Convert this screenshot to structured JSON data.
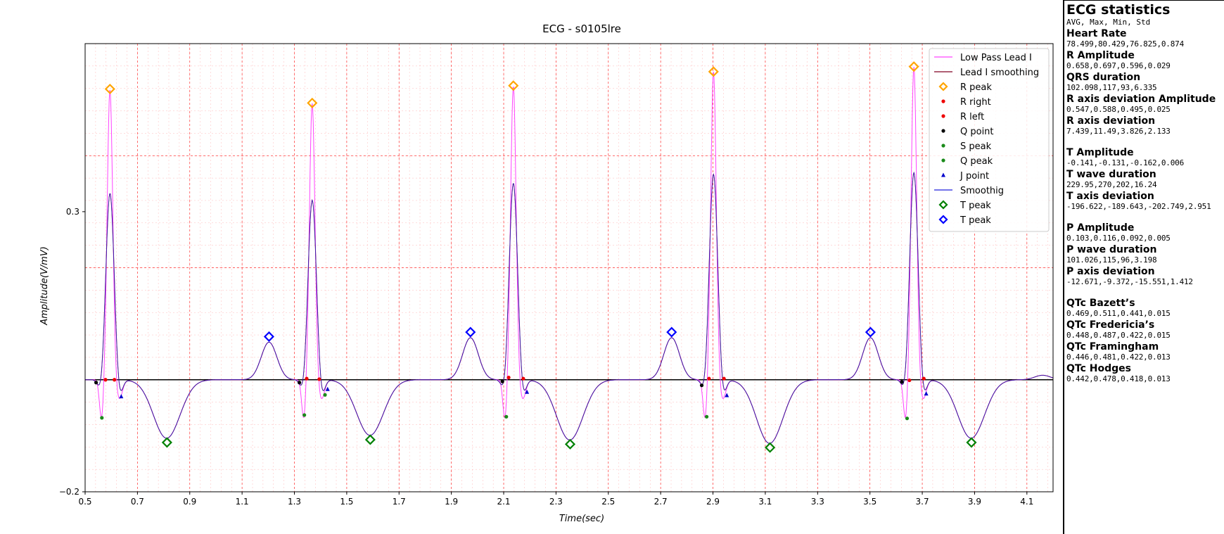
{
  "chart_data": {
    "type": "line",
    "title": "ECG - s0105lre",
    "xlabel": "Time(sec)",
    "ylabel": "Amplitude(V/mV)",
    "xlim": [
      0.5,
      4.2
    ],
    "ylim": [
      -0.2,
      0.6
    ],
    "x_ticks": [
      0.5,
      0.7,
      0.9,
      1.1,
      1.3,
      1.5,
      1.7,
      1.9,
      2.1,
      2.3,
      2.5,
      2.7,
      2.9,
      3.1,
      3.3,
      3.5,
      3.7,
      3.9,
      4.1
    ],
    "x_tick_labels": [
      "0.5",
      "0.7",
      "0.9",
      "1.1",
      "1.3",
      "1.5",
      "1.7",
      "1.9",
      "2.1",
      "2.3",
      "2.5",
      "2.7",
      "2.9",
      "3.1",
      "3.3",
      "3.5",
      "3.7",
      "3.9",
      "4.1"
    ],
    "y_ticks": [
      0.3,
      -0.2
    ],
    "y_tick_labels": [
      "0.3",
      "−0.2"
    ],
    "baseline": 0.0,
    "grid": true,
    "legend_position": "top-right",
    "series_colors": {
      "low_pass": "#ff44ff",
      "smoothing": "#800020",
      "smoothig": "#2222dd",
      "r_peak": "#ffa500",
      "r_right": "#ee0000",
      "r_left": "#ee0000",
      "q_point": "#000000",
      "s_peak": "#1a8a1a",
      "q_peak": "#1a8a1a",
      "j_point": "#0000cc",
      "t_peak_green": "#008000",
      "t_peak_blue": "#0000ff",
      "baseline": "#000000"
    },
    "beats": [
      {
        "r_time": 0.595,
        "r_peak": 0.519,
        "r_smooth": 0.334
      },
      {
        "r_time": 1.368,
        "r_peak": 0.494,
        "r_smooth": 0.322
      },
      {
        "r_time": 2.137,
        "r_peak": 0.525,
        "r_smooth": 0.352
      },
      {
        "r_time": 2.902,
        "r_peak": 0.55,
        "r_smooth": 0.368
      },
      {
        "r_time": 3.668,
        "r_peak": 0.559,
        "r_smooth": 0.371
      }
    ],
    "markers": {
      "r_peak": {
        "x": [
          0.595,
          1.368,
          2.137,
          2.902,
          3.668
        ],
        "y": [
          0.519,
          0.494,
          0.525,
          0.55,
          0.559
        ]
      },
      "r_right": {
        "x": [
          0.578,
          1.347,
          2.119,
          2.885,
          3.651
        ],
        "y": [
          0.0,
          0.002,
          0.004,
          0.002,
          -0.001
        ]
      },
      "r_left": {
        "x": [
          0.612,
          1.395,
          2.175,
          2.942,
          3.706
        ],
        "y": [
          0.0,
          0.001,
          0.002,
          0.002,
          0.002
        ]
      },
      "q_point": {
        "x": [
          0.542,
          1.319,
          2.095,
          2.857,
          3.622
        ],
        "y": [
          -0.005,
          -0.005,
          -0.003,
          -0.01,
          -0.004
        ]
      },
      "s_peak": {
        "x": [
          0.564,
          1.338,
          2.11,
          2.876,
          3.642
        ],
        "y": [
          -0.068,
          -0.063,
          -0.066,
          -0.066,
          -0.069
        ]
      },
      "q_peak": {
        "x": [
          1.417
        ],
        "y": [
          -0.027
        ]
      },
      "j_point": {
        "x": [
          0.638,
          1.427,
          2.189,
          2.953,
          3.715
        ],
        "y": [
          -0.03,
          -0.017,
          -0.022,
          -0.028,
          -0.025
        ]
      },
      "t_peak_green": {
        "x": [
          0.813,
          1.59,
          2.354,
          3.118,
          3.888
        ],
        "y": [
          -0.112,
          -0.107,
          -0.115,
          -0.121,
          -0.112
        ]
      },
      "t_peak_blue": {
        "x": [
          1.203,
          1.973,
          2.742,
          3.502
        ],
        "y": [
          0.077,
          0.085,
          0.085,
          0.085
        ]
      }
    },
    "legend": [
      {
        "label": "Low Pass Lead I",
        "kind": "line",
        "color": "#ff44ff"
      },
      {
        "label": "Lead I smoothing",
        "kind": "line",
        "color": "#800020"
      },
      {
        "label": "R peak",
        "kind": "diamond",
        "color": "#ffa500"
      },
      {
        "label": "R right",
        "kind": "dot",
        "color": "#ee0000"
      },
      {
        "label": "R left",
        "kind": "dot",
        "color": "#ee0000"
      },
      {
        "label": "Q point",
        "kind": "dot",
        "color": "#000000"
      },
      {
        "label": "S peak",
        "kind": "dot",
        "color": "#1a8a1a"
      },
      {
        "label": "Q peak",
        "kind": "dot",
        "color": "#1a8a1a"
      },
      {
        "label": "J point",
        "kind": "triangle",
        "color": "#0000cc"
      },
      {
        "label": "Smoothig",
        "kind": "line",
        "color": "#2222dd"
      },
      {
        "label": "T peak",
        "kind": "diamond",
        "color": "#008000"
      },
      {
        "label": "T peak",
        "kind": "diamond",
        "color": "#0000ff"
      }
    ]
  },
  "stats": {
    "title": "ECG statistics",
    "subtitle": "AVG, Max, Min, Std",
    "groups": [
      {
        "label": "Heart Rate",
        "value": "78.499,80.429,76.825,0.874",
        "gap": false
      },
      {
        "label": "R Amplitude",
        "value": "0.658,0.697,0.596,0.029",
        "gap": false
      },
      {
        "label": "QRS duration",
        "value": "102.098,117,93,6.335",
        "gap": false
      },
      {
        "label": "R axis deviation Amplitude",
        "value": "0.547,0.588,0.495,0.025",
        "gap": false
      },
      {
        "label": "R axis deviation",
        "value": "7.439,11.49,3.826,2.133",
        "gap": false
      },
      {
        "label": "T Amplitude",
        "value": "-0.141,-0.131,-0.162,0.006",
        "gap": true
      },
      {
        "label": "T wave duration",
        "value": "229.95,270,202,16.24",
        "gap": false
      },
      {
        "label": "T axis deviation",
        "value": "-196.622,-189.643,-202.749,2.951",
        "gap": false
      },
      {
        "label": "P Amplitude",
        "value": "0.103,0.116,0.092,0.005",
        "gap": true
      },
      {
        "label": "P wave duration",
        "value": "101.026,115,96,3.198",
        "gap": false
      },
      {
        "label": "P axis deviation",
        "value": "-12.671,-9.372,-15.551,1.412",
        "gap": false
      },
      {
        "label": "QTc Bazett’s",
        "value": "0.469,0.511,0.441,0.015",
        "gap": true
      },
      {
        "label": "QTc Fredericia’s",
        "value": "0.448,0.487,0.422,0.015",
        "gap": false
      },
      {
        "label": "QTc Framingham",
        "value": "0.446,0.481,0.422,0.013",
        "gap": false
      },
      {
        "label": "QTc Hodges",
        "value": "0.442,0.478,0.418,0.013",
        "gap": false
      }
    ]
  }
}
